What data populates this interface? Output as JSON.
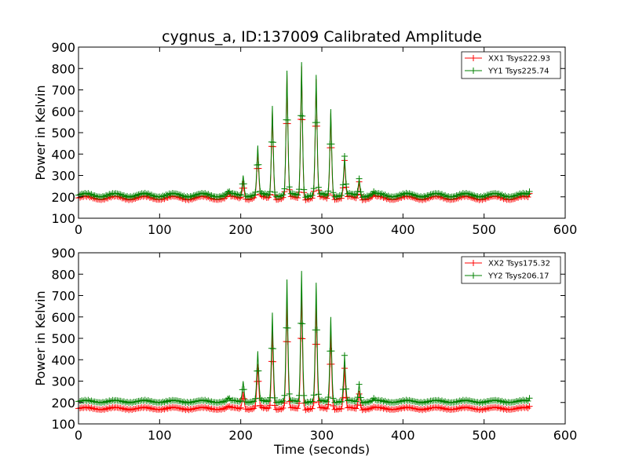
{
  "figure": {
    "title": "cygnus_a, ID:137009 Calibrated Amplitude",
    "colors": {
      "xx": "#ff0000",
      "yy": "#008000"
    }
  },
  "chart_data": [
    {
      "type": "line",
      "ylabel": "Power in Kelvin",
      "xlabel": "",
      "xlim": [
        0,
        600
      ],
      "ylim": [
        100,
        900
      ],
      "xticks": [
        "0",
        "100",
        "200",
        "300",
        "400",
        "500",
        "600"
      ],
      "yticks": [
        "100",
        "200",
        "300",
        "400",
        "500",
        "600",
        "700",
        "800",
        "900"
      ],
      "legend_position": "top-right",
      "marker": "plus",
      "x_end": 556,
      "peaks": [
        {
          "x": 185,
          "yy": 230,
          "xx": 220
        },
        {
          "x": 203,
          "yy": 300,
          "xx": 275
        },
        {
          "x": 221,
          "yy": 440,
          "xx": 420
        },
        {
          "x": 239,
          "yy": 625,
          "xx": 600
        },
        {
          "x": 257,
          "yy": 790,
          "xx": 770
        },
        {
          "x": 275,
          "yy": 830,
          "xx": 810
        },
        {
          "x": 293,
          "yy": 770,
          "xx": 750
        },
        {
          "x": 311,
          "yy": 610,
          "xx": 590
        },
        {
          "x": 328,
          "yy": 390,
          "xx": 370
        },
        {
          "x": 346,
          "yy": 285,
          "xx": 270
        },
        {
          "x": 364,
          "yy": 225,
          "xx": 215
        }
      ],
      "series": [
        {
          "name": "XX1 Tsys222.93",
          "color": "#ff0000",
          "baseline": 195,
          "ripple": 8,
          "end_value": 215
        },
        {
          "name": "YY1 Tsys225.74",
          "color": "#008000",
          "baseline": 208,
          "ripple": 8,
          "end_value": 225
        }
      ]
    },
    {
      "type": "line",
      "ylabel": "Power in Kelvin",
      "xlabel": "Time (seconds)",
      "xlim": [
        0,
        600
      ],
      "ylim": [
        100,
        900
      ],
      "xticks": [
        "0",
        "100",
        "200",
        "300",
        "400",
        "500",
        "600"
      ],
      "yticks": [
        "100",
        "200",
        "300",
        "400",
        "500",
        "600",
        "700",
        "800",
        "900"
      ],
      "legend_position": "top-right",
      "marker": "plus",
      "x_end": 556,
      "peaks": [
        {
          "x": 185,
          "yy": 225,
          "xx": 185
        },
        {
          "x": 203,
          "yy": 300,
          "xx": 250
        },
        {
          "x": 221,
          "yy": 440,
          "xx": 380
        },
        {
          "x": 239,
          "yy": 620,
          "xx": 540
        },
        {
          "x": 257,
          "yy": 775,
          "xx": 690
        },
        {
          "x": 275,
          "yy": 815,
          "xx": 720
        },
        {
          "x": 293,
          "yy": 760,
          "xx": 670
        },
        {
          "x": 311,
          "yy": 600,
          "xx": 520
        },
        {
          "x": 328,
          "yy": 420,
          "xx": 360
        },
        {
          "x": 346,
          "yy": 285,
          "xx": 240
        },
        {
          "x": 364,
          "yy": 220,
          "xx": 180
        }
      ],
      "series": [
        {
          "name": "XX2 Tsys175.32",
          "color": "#ff0000",
          "baseline": 172,
          "ripple": 5,
          "end_value": 182
        },
        {
          "name": "YY2 Tsys206.17",
          "color": "#008000",
          "baseline": 205,
          "ripple": 5,
          "end_value": 220
        }
      ]
    }
  ]
}
